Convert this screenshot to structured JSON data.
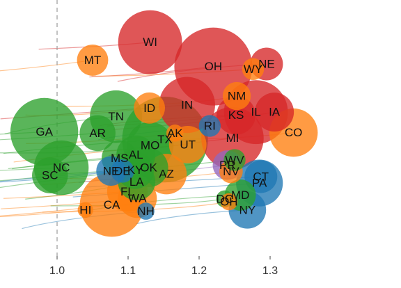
{
  "chart_data": {
    "type": "scatter",
    "title": "",
    "xlabel": "",
    "ylabel": "",
    "xlim": [
      0.972,
      1.365
    ],
    "ylim": [
      0,
      1
    ],
    "x_ticks": [
      "1.0",
      "1.1",
      "1.2",
      "1.3"
    ],
    "x_tick_values": [
      1.0,
      1.1,
      1.2,
      1.3
    ],
    "reference_line_x": 1.0,
    "grid": false,
    "legend": "none",
    "colors": {
      "red": "#d62728",
      "orange": "#ff7f0e",
      "green": "#2ca02c",
      "blue": "#1f77b4",
      "purple": "#9467bd"
    },
    "points": [
      {
        "label": "WI",
        "x": 1.131,
        "y": 0.835,
        "size": 0.82,
        "color": "red"
      },
      {
        "label": "OH",
        "x": 1.22,
        "y": 0.74,
        "size": 1.0,
        "color": "red"
      },
      {
        "label": "MT",
        "x": 1.05,
        "y": 0.765,
        "size": 0.4,
        "color": "orange"
      },
      {
        "label": "NE",
        "x": 1.295,
        "y": 0.75,
        "size": 0.42,
        "color": "red"
      },
      {
        "label": "WY",
        "x": 1.276,
        "y": 0.73,
        "size": 0.28,
        "color": "orange"
      },
      {
        "label": "NM",
        "x": 1.253,
        "y": 0.625,
        "size": 0.36,
        "color": "orange"
      },
      {
        "label": "IN",
        "x": 1.183,
        "y": 0.59,
        "size": 0.72,
        "color": "red"
      },
      {
        "label": "TN",
        "x": 1.083,
        "y": 0.545,
        "size": 0.67,
        "color": "green"
      },
      {
        "label": "ID",
        "x": 1.13,
        "y": 0.578,
        "size": 0.4,
        "color": "orange"
      },
      {
        "label": "KS",
        "x": 1.252,
        "y": 0.55,
        "size": 0.5,
        "color": "red"
      },
      {
        "label": "IL",
        "x": 1.28,
        "y": 0.562,
        "size": 0.82,
        "color": "red"
      },
      {
        "label": "IA",
        "x": 1.306,
        "y": 0.562,
        "size": 0.5,
        "color": "red"
      },
      {
        "label": "GA",
        "x": 0.982,
        "y": 0.485,
        "size": 0.87,
        "color": "green"
      },
      {
        "label": "AR",
        "x": 1.057,
        "y": 0.48,
        "size": 0.46,
        "color": "green"
      },
      {
        "label": "RI",
        "x": 1.215,
        "y": 0.508,
        "size": 0.28,
        "color": "blue"
      },
      {
        "label": "MI",
        "x": 1.247,
        "y": 0.46,
        "size": 0.8,
        "color": "red"
      },
      {
        "label": "CO",
        "x": 1.333,
        "y": 0.482,
        "size": 0.62,
        "color": "orange"
      },
      {
        "label": "AK",
        "x": 1.166,
        "y": 0.48,
        "size": 0.22,
        "color": "orange"
      },
      {
        "label": "TX",
        "x": 1.152,
        "y": 0.455,
        "size": 1.1,
        "color": "green"
      },
      {
        "label": "UT",
        "x": 1.184,
        "y": 0.435,
        "size": 0.48,
        "color": "orange"
      },
      {
        "label": "MO",
        "x": 1.131,
        "y": 0.432,
        "size": 0.6,
        "color": "green"
      },
      {
        "label": "MS",
        "x": 1.088,
        "y": 0.382,
        "size": 0.46,
        "color": "green"
      },
      {
        "label": "AL",
        "x": 1.111,
        "y": 0.395,
        "size": 0.5,
        "color": "green"
      },
      {
        "label": "KY",
        "x": 1.11,
        "y": 0.335,
        "size": 0.48,
        "color": "green"
      },
      {
        "label": "NC",
        "x": 1.006,
        "y": 0.345,
        "size": 0.7,
        "color": "green"
      },
      {
        "label": "SC",
        "x": 0.99,
        "y": 0.315,
        "size": 0.46,
        "color": "green"
      },
      {
        "label": "NE2",
        "x": 1.076,
        "y": 0.332,
        "size": 0.38,
        "color": "blue"
      },
      {
        "label": "DE",
        "x": 1.092,
        "y": 0.332,
        "size": 0.3,
        "color": "blue"
      },
      {
        "label": "OK",
        "x": 1.129,
        "y": 0.345,
        "size": 0.5,
        "color": "green"
      },
      {
        "label": "AZ",
        "x": 1.154,
        "y": 0.32,
        "size": 0.52,
        "color": "orange"
      },
      {
        "label": "WV",
        "x": 1.25,
        "y": 0.375,
        "size": 0.28,
        "color": "green"
      },
      {
        "label": "PR",
        "x": 1.24,
        "y": 0.355,
        "size": 0.38,
        "color": "purple"
      },
      {
        "label": "NV",
        "x": 1.245,
        "y": 0.33,
        "size": 0.3,
        "color": "orange"
      },
      {
        "label": "CT",
        "x": 1.287,
        "y": 0.31,
        "size": 0.42,
        "color": "blue"
      },
      {
        "label": "PA",
        "x": 1.285,
        "y": 0.285,
        "size": 0.6,
        "color": "blue"
      },
      {
        "label": "LA",
        "x": 1.112,
        "y": 0.29,
        "size": 0.48,
        "color": "green"
      },
      {
        "label": "FL",
        "x": 1.099,
        "y": 0.252,
        "size": 0.52,
        "color": "orange"
      },
      {
        "label": "WA",
        "x": 1.113,
        "y": 0.225,
        "size": 0.5,
        "color": "orange"
      },
      {
        "label": "CA",
        "x": 1.077,
        "y": 0.2,
        "size": 0.82,
        "color": "orange"
      },
      {
        "label": "MD",
        "x": 1.258,
        "y": 0.238,
        "size": 0.4,
        "color": "green"
      },
      {
        "label": "DC",
        "x": 1.236,
        "y": 0.223,
        "size": 0.22,
        "color": "green"
      },
      {
        "label": "OH2",
        "x": 1.242,
        "y": 0.212,
        "size": 0.22,
        "color": "orange"
      },
      {
        "label": "NY",
        "x": 1.268,
        "y": 0.18,
        "size": 0.48,
        "color": "blue"
      },
      {
        "label": "NH",
        "x": 1.125,
        "y": 0.175,
        "size": 0.22,
        "color": "blue"
      },
      {
        "label": "HI",
        "x": 1.04,
        "y": 0.18,
        "size": 0.2,
        "color": "orange"
      }
    ],
    "point_labels": {
      "NE2": "NE",
      "OH2": "OH"
    }
  }
}
